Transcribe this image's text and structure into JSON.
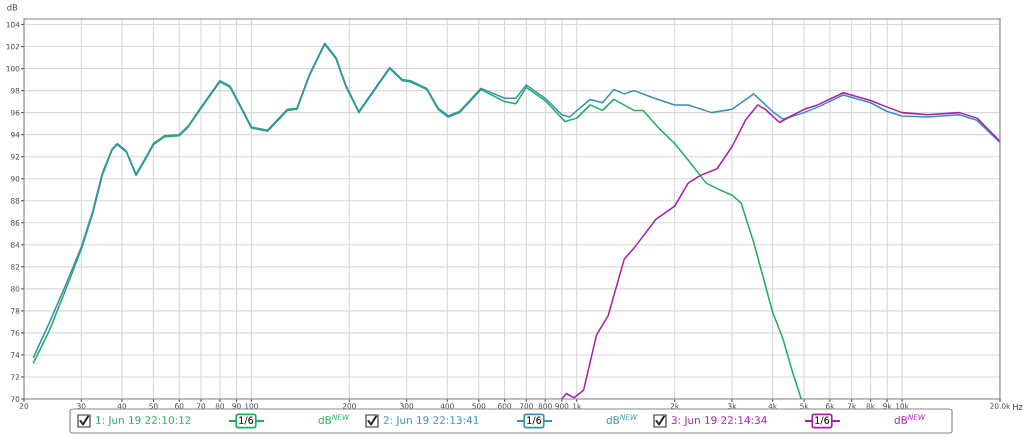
{
  "chart_data": {
    "type": "line",
    "ylabel": "dB",
    "xlabel": "Hz",
    "log": "x",
    "grid": true,
    "legend": "bottom",
    "marker": "none",
    "line_style": "solid",
    "xlim": [
      20,
      20000
    ],
    "ylim": [
      70,
      104.5
    ],
    "xticks": [
      20,
      30,
      40,
      50,
      60,
      70,
      80,
      90,
      100,
      200,
      300,
      400,
      500,
      600,
      700,
      800,
      900,
      {
        "value": 1000,
        "label": "1k"
      },
      {
        "value": 2000,
        "label": "2k"
      },
      {
        "value": 3000,
        "label": "3k"
      },
      {
        "value": 4000,
        "label": "4k"
      },
      {
        "value": 5000,
        "label": "5k"
      },
      {
        "value": 6000,
        "label": "6k"
      },
      {
        "value": 7000,
        "label": "7k"
      },
      {
        "value": 8000,
        "label": "8k"
      },
      {
        "value": 9000,
        "label": "9k"
      },
      {
        "value": 10000,
        "label": "10k"
      },
      {
        "value": 20000,
        "label": "20.0k"
      }
    ],
    "yticks": [
      70,
      72,
      74,
      76,
      78,
      80,
      82,
      84,
      86,
      88,
      90,
      92,
      94,
      96,
      98,
      100,
      102,
      104
    ],
    "series": [
      {
        "name": "1: Jun 19 22:10:12",
        "color": "#1fae5c",
        "x": [
          21.4,
          24,
          27,
          30,
          32.5,
          34.8,
          37.3,
          38.7,
          41.3,
          44.2,
          47.5,
          50,
          54,
          60,
          64,
          70,
          80,
          86,
          93,
          100,
          112,
          129,
          138,
          151,
          168,
          182,
          195,
          214,
          236,
          266,
          291,
          308,
          346,
          375,
          403,
          436,
          508,
          600,
          650,
          700,
          800,
          920,
          1000,
          1100,
          1200,
          1300,
          1500,
          1600,
          1800,
          2000,
          2200,
          2500,
          2700,
          3000,
          3200,
          3500,
          4000,
          4300,
          4600,
          4900
        ],
        "values": [
          73.3,
          76.3,
          80.1,
          83.6,
          86.8,
          90.3,
          92.6,
          93.1,
          92.4,
          90.3,
          91.9,
          93.1,
          93.8,
          93.9,
          94.7,
          96.4,
          98.8,
          98.3,
          96.4,
          94.6,
          94.3,
          96.2,
          96.3,
          99.4,
          102.2,
          100.9,
          98.4,
          96.0,
          97.8,
          100.0,
          98.9,
          98.8,
          98.1,
          96.3,
          95.6,
          96.0,
          98.1,
          97.0,
          96.8,
          98.3,
          97.1,
          95.2,
          95.5,
          96.7,
          96.2,
          97.2,
          96.2,
          96.2,
          94.5,
          93.2,
          91.7,
          89.6,
          89.1,
          88.5,
          87.8,
          84.2,
          77.9,
          75.5,
          72.5,
          70.0
        ]
      },
      {
        "name": "2: Jun 19 22:13:41",
        "color": "#3a8fb5",
        "x": [
          21.4,
          24,
          27,
          30,
          32.5,
          34.8,
          37.3,
          38.7,
          41.3,
          44.2,
          47.5,
          50,
          54,
          60,
          64,
          70,
          80,
          86,
          93,
          100,
          112,
          129,
          138,
          151,
          168,
          182,
          195,
          214,
          236,
          266,
          291,
          308,
          346,
          375,
          403,
          436,
          508,
          600,
          650,
          700,
          800,
          900,
          950,
          1100,
          1200,
          1300,
          1400,
          1500,
          1700,
          2000,
          2200,
          2600,
          3000,
          3500,
          4000,
          4300,
          5000,
          5500,
          6600,
          8000,
          9000,
          10000,
          12000,
          15000,
          17000,
          20000
        ],
        "values": [
          73.8,
          77.0,
          80.5,
          83.8,
          87.0,
          90.5,
          92.7,
          93.2,
          92.5,
          90.4,
          92.0,
          93.2,
          93.9,
          94.0,
          94.8,
          96.5,
          98.9,
          98.4,
          96.5,
          94.7,
          94.4,
          96.3,
          96.4,
          99.5,
          102.3,
          101.0,
          98.5,
          96.1,
          97.9,
          100.1,
          99.0,
          98.9,
          98.2,
          96.4,
          95.7,
          96.1,
          98.2,
          97.3,
          97.3,
          98.5,
          97.3,
          95.8,
          95.6,
          97.2,
          96.9,
          98.1,
          97.7,
          98.0,
          97.4,
          96.7,
          96.7,
          96.0,
          96.3,
          97.7,
          96.1,
          95.4,
          96.0,
          96.5,
          97.6,
          96.9,
          96.1,
          95.7,
          95.6,
          95.8,
          95.3,
          93.3
        ]
      },
      {
        "name": "3: Jun 19 22:14:34",
        "color": "#a81fae",
        "x": [
          900,
          930,
          980,
          1050,
          1150,
          1250,
          1400,
          1500,
          1750,
          2000,
          2200,
          2400,
          2700,
          3000,
          3300,
          3600,
          3800,
          4200,
          4500,
          5000,
          5500,
          6600,
          8000,
          9000,
          10000,
          12000,
          15000,
          17000,
          20000
        ],
        "values": [
          70.0,
          70.5,
          70.1,
          70.8,
          75.8,
          77.6,
          82.7,
          83.7,
          86.3,
          87.5,
          89.6,
          90.3,
          90.9,
          92.9,
          95.3,
          96.7,
          96.3,
          95.1,
          95.6,
          96.3,
          96.7,
          97.8,
          97.1,
          96.5,
          96.0,
          95.8,
          96.0,
          95.5,
          93.4
        ]
      }
    ],
    "annotations": [
      "1/6",
      "dB$^{NEW}$",
      "1/6",
      "dB$^{NEW}$",
      "1/6",
      "dB$^{NEW}$"
    ]
  }
}
